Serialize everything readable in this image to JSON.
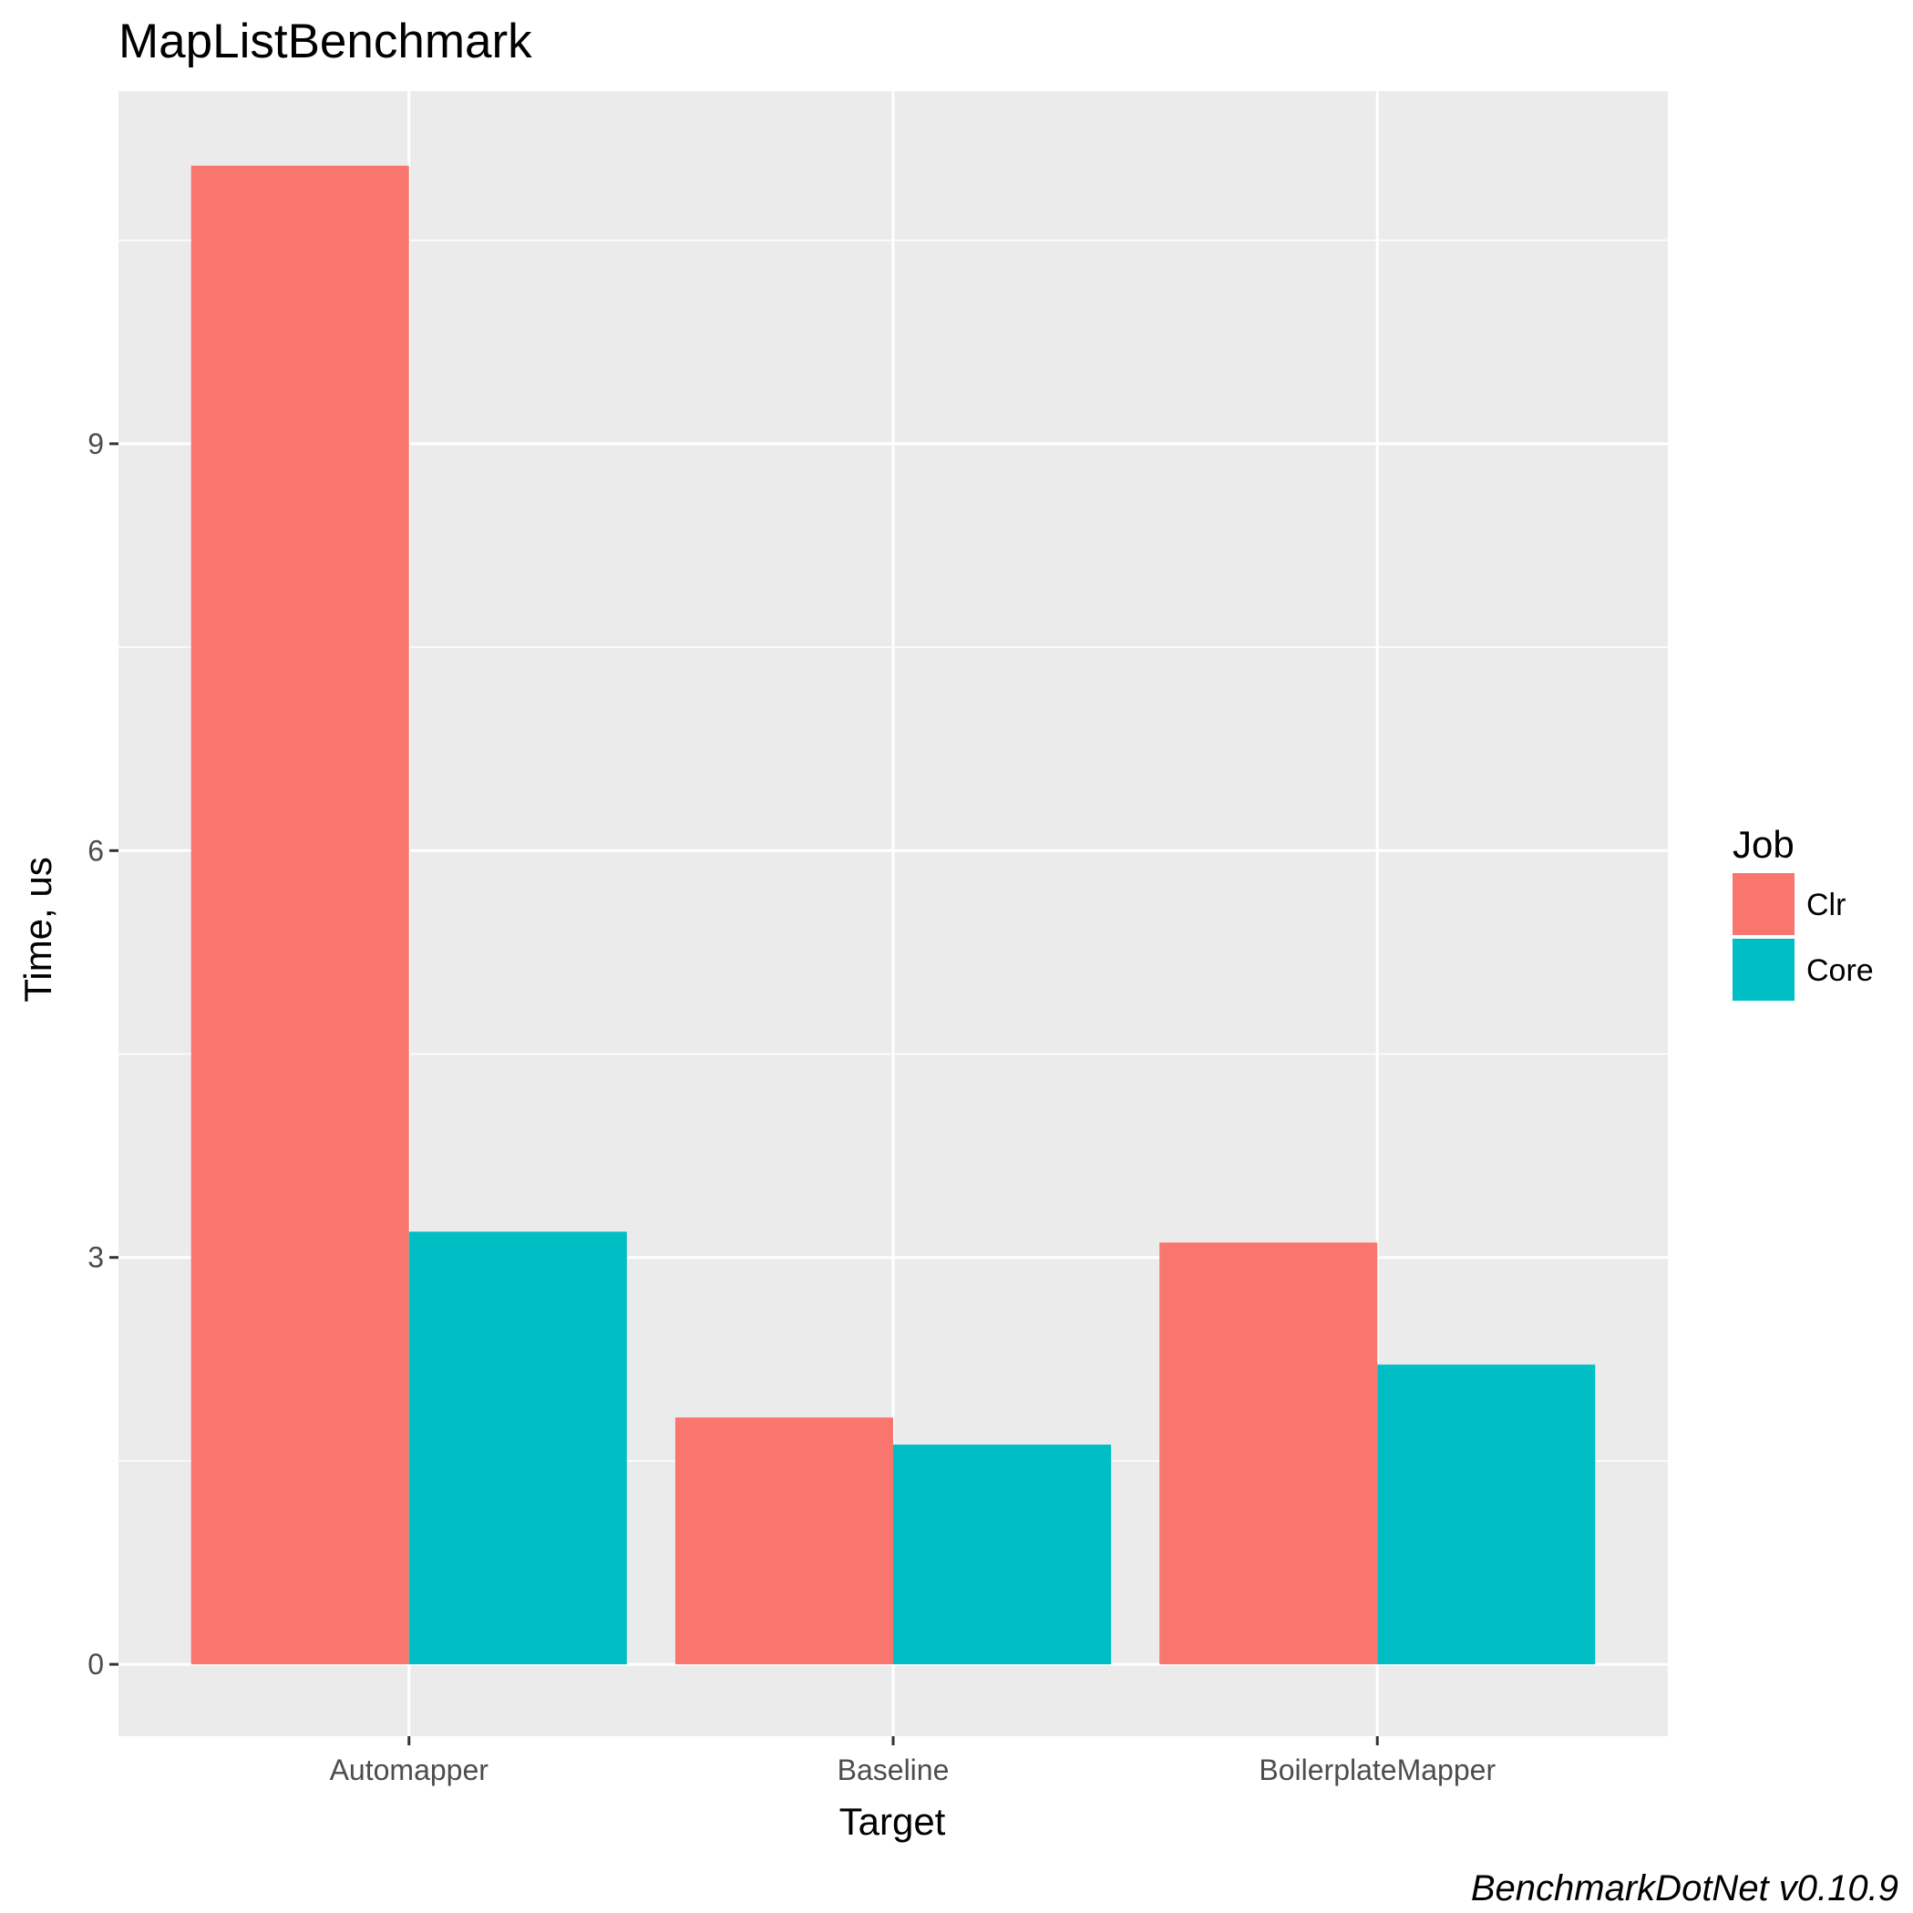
{
  "chart_data": {
    "type": "bar",
    "title": "MapListBenchmark",
    "xlabel": "Target",
    "ylabel": "Time, us",
    "categories": [
      "Automapper",
      "Baseline",
      "BoilerplateMapper"
    ],
    "series": [
      {
        "name": "Clr",
        "color": "#F8766D",
        "values": [
          11.05,
          1.82,
          3.11
        ]
      },
      {
        "name": "Core",
        "color": "#00BFC4",
        "values": [
          3.19,
          1.62,
          2.21
        ]
      }
    ],
    "ylim": [
      -0.53,
      11.6
    ],
    "yticks": [
      0,
      3,
      6,
      9
    ],
    "ytick_labels": [
      "0",
      "3",
      "6",
      "9"
    ],
    "legend": {
      "title": "Job",
      "position": "right"
    },
    "grid": true,
    "panel_background": "#EBEBEB",
    "caption": "BenchmarkDotNet v0.10.9"
  }
}
